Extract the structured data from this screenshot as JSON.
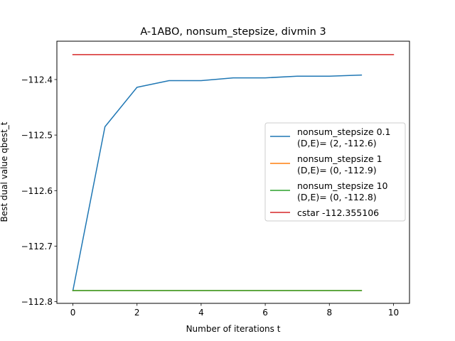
{
  "chart_data": {
    "type": "line",
    "title": "A-1ABO, nonsum_stepsize, divmin 3",
    "xlabel": "Number of iterations t",
    "ylabel": "Best dual value qbest_t",
    "xlim": [
      -0.5,
      10.5
    ],
    "ylim": [
      -112.803,
      -112.331
    ],
    "xticks": [
      0,
      2,
      4,
      6,
      8,
      10
    ],
    "xtick_labels": [
      "0",
      "2",
      "4",
      "6",
      "8",
      "10"
    ],
    "yticks": [
      -112.8,
      -112.7,
      -112.6,
      -112.5,
      -112.4
    ],
    "ytick_labels": [
      "−112.8",
      "−112.7",
      "−112.6",
      "−112.5",
      "−112.4"
    ],
    "grid": false,
    "legend_position": "center-right",
    "series": [
      {
        "name": "nonsum_stepsize 0.1",
        "name_line2": "(D,E)= (2, -112.6)",
        "color": "#1f77b4",
        "x": [
          0,
          1,
          2,
          3,
          4,
          5,
          6,
          7,
          8,
          9
        ],
        "y": [
          -112.78,
          -112.485,
          -112.414,
          -112.402,
          -112.402,
          -112.397,
          -112.397,
          -112.394,
          -112.394,
          -112.392
        ]
      },
      {
        "name": "nonsum_stepsize 1",
        "name_line2": "(D,E)= (0, -112.9)",
        "color": "#ff7f0e",
        "x": [
          0,
          1,
          2,
          3,
          4,
          5,
          6,
          7,
          8,
          9
        ],
        "y": [
          -112.78,
          -112.78,
          -112.78,
          -112.78,
          -112.78,
          -112.78,
          -112.78,
          -112.78,
          -112.78,
          -112.78
        ]
      },
      {
        "name": "nonsum_stepsize 10",
        "name_line2": "(D,E)= (0, -112.8)",
        "color": "#2ca02c",
        "x": [
          0,
          1,
          2,
          3,
          4,
          5,
          6,
          7,
          8,
          9
        ],
        "y": [
          -112.78,
          -112.78,
          -112.78,
          -112.78,
          -112.78,
          -112.78,
          -112.78,
          -112.78,
          -112.78,
          -112.78
        ]
      },
      {
        "name": "cstar -112.355106",
        "name_line2": "",
        "color": "#d62728",
        "x": [
          0,
          10
        ],
        "y": [
          -112.355106,
          -112.355106
        ]
      }
    ]
  }
}
